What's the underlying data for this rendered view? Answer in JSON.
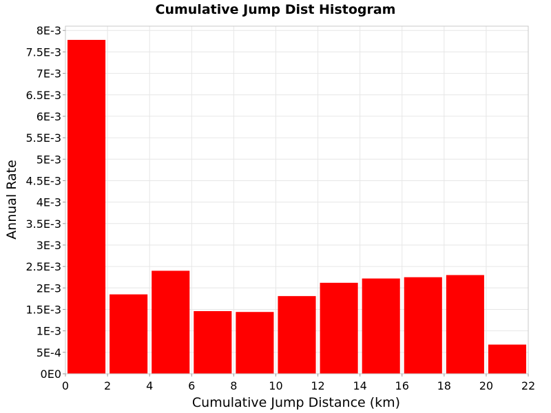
{
  "chart_data": {
    "type": "bar",
    "title": "Cumulative Jump Dist Histogram",
    "xlabel": "Cumulative Jump Distance (km)",
    "ylabel": "Annual Rate",
    "xlim": [
      0,
      22
    ],
    "ylim": [
      0,
      0.0081
    ],
    "x_ticks": [
      {
        "value": 0,
        "label": "0"
      },
      {
        "value": 2,
        "label": "2"
      },
      {
        "value": 4,
        "label": "4"
      },
      {
        "value": 6,
        "label": "6"
      },
      {
        "value": 8,
        "label": "8"
      },
      {
        "value": 10,
        "label": "10"
      },
      {
        "value": 12,
        "label": "12"
      },
      {
        "value": 14,
        "label": "14"
      },
      {
        "value": 16,
        "label": "16"
      },
      {
        "value": 18,
        "label": "18"
      },
      {
        "value": 20,
        "label": "20"
      },
      {
        "value": 22,
        "label": "22"
      }
    ],
    "y_ticks": [
      {
        "value": 0,
        "label": "0E0"
      },
      {
        "value": 0.0005,
        "label": "5E-4"
      },
      {
        "value": 0.001,
        "label": "1E-3"
      },
      {
        "value": 0.0015,
        "label": "1.5E-3"
      },
      {
        "value": 0.002,
        "label": "2E-3"
      },
      {
        "value": 0.0025,
        "label": "2.5E-3"
      },
      {
        "value": 0.003,
        "label": "3E-3"
      },
      {
        "value": 0.0035,
        "label": "3.5E-3"
      },
      {
        "value": 0.004,
        "label": "4E-3"
      },
      {
        "value": 0.0045,
        "label": "4.5E-3"
      },
      {
        "value": 0.005,
        "label": "5E-3"
      },
      {
        "value": 0.0055,
        "label": "5.5E-3"
      },
      {
        "value": 0.006,
        "label": "6E-3"
      },
      {
        "value": 0.0065,
        "label": "6.5E-3"
      },
      {
        "value": 0.007,
        "label": "7E-3"
      },
      {
        "value": 0.0075,
        "label": "7.5E-3"
      },
      {
        "value": 0.008,
        "label": "8E-3"
      }
    ],
    "bars": [
      {
        "x0": 0,
        "x1": 2,
        "value": 0.00778
      },
      {
        "x0": 2,
        "x1": 4,
        "value": 0.00185
      },
      {
        "x0": 4,
        "x1": 6,
        "value": 0.0024
      },
      {
        "x0": 6,
        "x1": 8,
        "value": 0.00146
      },
      {
        "x0": 8,
        "x1": 10,
        "value": 0.00144
      },
      {
        "x0": 10,
        "x1": 12,
        "value": 0.00181
      },
      {
        "x0": 12,
        "x1": 14,
        "value": 0.00212
      },
      {
        "x0": 14,
        "x1": 16,
        "value": 0.00222
      },
      {
        "x0": 16,
        "x1": 18,
        "value": 0.00225
      },
      {
        "x0": 18,
        "x1": 20,
        "value": 0.0023
      },
      {
        "x0": 20,
        "x1": 22,
        "value": 0.00068
      }
    ],
    "bar_color": "#ff0000",
    "grid": true,
    "legend": "none"
  }
}
